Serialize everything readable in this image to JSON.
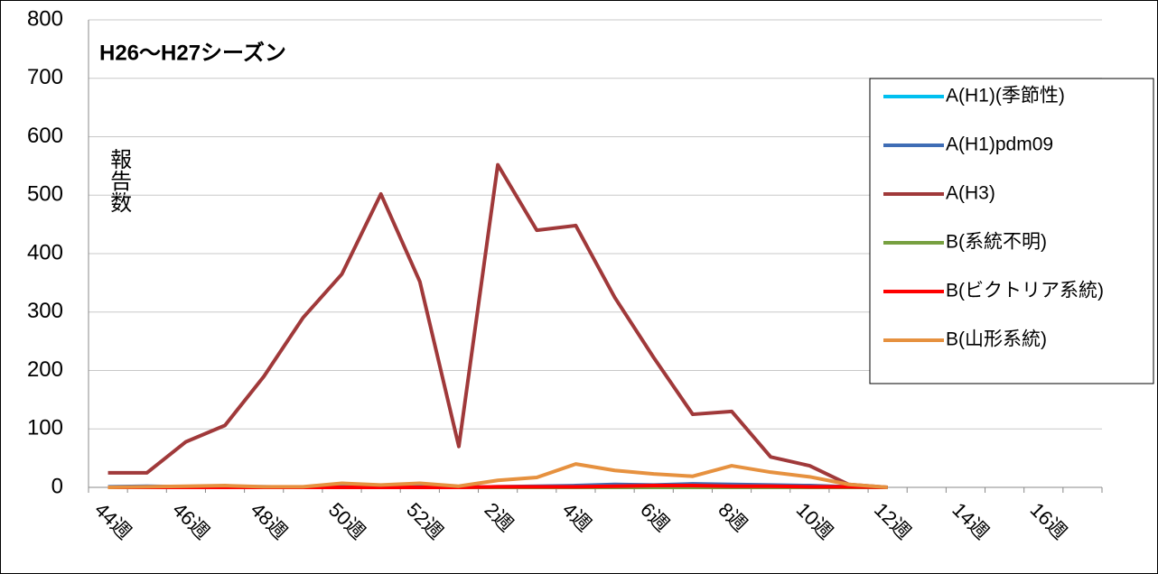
{
  "chart_data": {
    "type": "line",
    "title": "H26〜H27シーズン",
    "ylabel": "報告数",
    "categories": [
      "44週",
      null,
      "46週",
      null,
      "48週",
      null,
      "50週",
      null,
      "52週",
      null,
      "2週",
      null,
      "4週",
      null,
      "6週",
      null,
      "8週",
      null,
      "10週",
      null,
      "12週",
      null,
      "14週",
      null,
      "16週",
      null
    ],
    "series": [
      {
        "name": "A(H1)(季節性)",
        "color": "#00c0f0",
        "values": [
          0,
          0,
          0,
          0,
          0,
          0,
          0,
          0,
          0,
          0,
          0,
          0,
          0,
          0,
          0,
          0,
          0,
          0,
          0,
          0,
          0,
          null,
          null,
          null,
          null,
          null
        ]
      },
      {
        "name": "A(H1)pdm09",
        "color": "#3f6db5",
        "values": [
          1,
          2,
          1,
          1,
          1,
          0,
          1,
          1,
          1,
          0,
          1,
          2,
          3,
          5,
          4,
          6,
          5,
          4,
          3,
          1,
          0,
          null,
          null,
          null,
          null,
          null
        ]
      },
      {
        "name": "A(H3)",
        "color": "#a0393a",
        "values": [
          25,
          25,
          78,
          106,
          190,
          290,
          365,
          502,
          352,
          70,
          552,
          440,
          448,
          325,
          222,
          125,
          130,
          52,
          37,
          5,
          0,
          null,
          null,
          null,
          null,
          null
        ]
      },
      {
        "name": "B(系統不明)",
        "color": "#77a040",
        "values": [
          0,
          0,
          0,
          0,
          0,
          0,
          0,
          0,
          0,
          0,
          0,
          0,
          0,
          0,
          0,
          0,
          0,
          0,
          0,
          0,
          0,
          null,
          null,
          null,
          null,
          null
        ]
      },
      {
        "name": "B(ビクトリア系統)",
        "color": "#ff0000",
        "values": [
          0,
          0,
          0,
          0,
          0,
          0,
          0,
          0,
          0,
          0,
          1,
          1,
          1,
          2,
          3,
          3,
          2,
          2,
          1,
          1,
          0,
          null,
          null,
          null,
          null,
          null
        ]
      },
      {
        "name": "B(山形系統)",
        "color": "#e6913f",
        "values": [
          0,
          1,
          2,
          3,
          1,
          1,
          7,
          4,
          7,
          2,
          12,
          17,
          40,
          29,
          23,
          19,
          37,
          26,
          18,
          5,
          0,
          null,
          null,
          null,
          null,
          null
        ]
      }
    ],
    "ylim": [
      0,
      800
    ],
    "yticks": [
      0,
      100,
      200,
      300,
      400,
      500,
      600,
      700,
      800
    ],
    "grid": true,
    "legend": "right"
  }
}
